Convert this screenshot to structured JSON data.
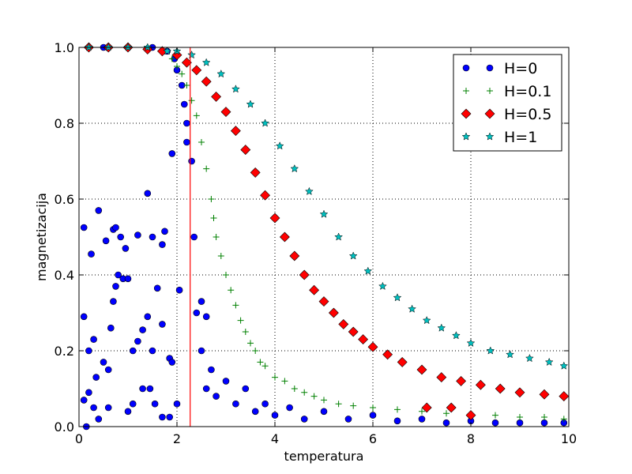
{
  "chart_data": {
    "type": "scatter",
    "xlabel": "temperatura",
    "ylabel": "magnetizacija",
    "xlim": [
      0,
      10
    ],
    "ylim": [
      0,
      1.0
    ],
    "xticks": [
      "0",
      "2",
      "4",
      "6",
      "8",
      "10"
    ],
    "yticks": [
      "0.0",
      "0.2",
      "0.4",
      "0.6",
      "0.8",
      "1.0"
    ],
    "grid": true,
    "legend_position": "top-right",
    "vertical_line": {
      "x": 2.27,
      "color": "#ff0000"
    },
    "series": [
      {
        "name": "H=0",
        "marker": "circle",
        "color": "#0000ff",
        "points": [
          [
            0.1,
            0.525
          ],
          [
            0.25,
            0.455
          ],
          [
            0.4,
            0.57
          ],
          [
            0.55,
            0.49
          ],
          [
            0.7,
            0.52
          ],
          [
            0.75,
            0.525
          ],
          [
            0.85,
            0.5
          ],
          [
            0.95,
            0.47
          ],
          [
            1.2,
            0.505
          ],
          [
            1.4,
            0.615
          ],
          [
            1.5,
            0.5
          ],
          [
            1.7,
            0.48
          ],
          [
            1.75,
            0.515
          ],
          [
            1.9,
            0.72
          ],
          [
            2.2,
            0.8
          ],
          [
            2.3,
            0.7
          ],
          [
            2.35,
            0.5
          ],
          [
            0.1,
            0.29
          ],
          [
            0.2,
            0.2
          ],
          [
            0.3,
            0.23
          ],
          [
            0.35,
            0.13
          ],
          [
            0.5,
            0.17
          ],
          [
            0.6,
            0.15
          ],
          [
            0.65,
            0.26
          ],
          [
            0.7,
            0.33
          ],
          [
            0.75,
            0.37
          ],
          [
            0.8,
            0.4
          ],
          [
            0.9,
            0.39
          ],
          [
            1.0,
            0.39
          ],
          [
            1.1,
            0.2
          ],
          [
            1.2,
            0.225
          ],
          [
            1.3,
            0.255
          ],
          [
            1.4,
            0.29
          ],
          [
            1.5,
            0.2
          ],
          [
            1.6,
            0.365
          ],
          [
            1.7,
            0.27
          ],
          [
            1.85,
            0.18
          ],
          [
            1.9,
            0.17
          ],
          [
            2.05,
            0.36
          ],
          [
            2.4,
            0.3
          ],
          [
            2.5,
            0.33
          ],
          [
            2.6,
            0.29
          ],
          [
            0.1,
            0.07
          ],
          [
            0.2,
            0.09
          ],
          [
            0.3,
            0.05
          ],
          [
            0.4,
            0.02
          ],
          [
            0.6,
            0.05
          ],
          [
            1.0,
            0.04
          ],
          [
            1.1,
            0.06
          ],
          [
            1.3,
            0.1
          ],
          [
            1.45,
            0.1
          ],
          [
            1.55,
            0.06
          ],
          [
            1.7,
            0.025
          ],
          [
            1.85,
            0.025
          ],
          [
            2.0,
            0.06
          ],
          [
            0.15,
            0.0
          ],
          [
            2.1,
            0.9
          ],
          [
            2.15,
            0.85
          ],
          [
            2.2,
            0.75
          ],
          [
            2.0,
            0.94
          ],
          [
            1.95,
            0.97
          ],
          [
            1.8,
            0.99
          ],
          [
            1.5,
            1.0
          ],
          [
            1.0,
            1.0
          ],
          [
            0.5,
            1.0
          ],
          [
            0.2,
            1.0
          ],
          [
            2.5,
            0.2
          ],
          [
            2.6,
            0.1
          ],
          [
            2.7,
            0.15
          ],
          [
            2.8,
            0.08
          ],
          [
            3.0,
            0.12
          ],
          [
            3.2,
            0.06
          ],
          [
            3.4,
            0.1
          ],
          [
            3.6,
            0.04
          ],
          [
            3.8,
            0.06
          ],
          [
            4.0,
            0.03
          ],
          [
            4.3,
            0.05
          ],
          [
            4.6,
            0.02
          ],
          [
            5.0,
            0.04
          ],
          [
            5.5,
            0.02
          ],
          [
            6.0,
            0.03
          ],
          [
            6.5,
            0.015
          ],
          [
            7.0,
            0.02
          ],
          [
            7.5,
            0.01
          ],
          [
            8.0,
            0.015
          ],
          [
            8.5,
            0.01
          ],
          [
            9.0,
            0.01
          ],
          [
            9.5,
            0.01
          ],
          [
            9.9,
            0.01
          ]
        ]
      },
      {
        "name": "H=0.1",
        "marker": "plus",
        "color": "#008000",
        "points": [
          [
            0.2,
            1.0
          ],
          [
            0.6,
            1.0
          ],
          [
            1.0,
            1.0
          ],
          [
            1.4,
            0.995
          ],
          [
            1.7,
            0.99
          ],
          [
            1.9,
            0.97
          ],
          [
            2.0,
            0.95
          ],
          [
            2.1,
            0.93
          ],
          [
            2.2,
            0.9
          ],
          [
            2.3,
            0.86
          ],
          [
            2.4,
            0.82
          ],
          [
            2.5,
            0.75
          ],
          [
            2.6,
            0.68
          ],
          [
            2.7,
            0.6
          ],
          [
            2.75,
            0.55
          ],
          [
            2.8,
            0.5
          ],
          [
            2.9,
            0.45
          ],
          [
            3.0,
            0.4
          ],
          [
            3.1,
            0.36
          ],
          [
            3.2,
            0.32
          ],
          [
            3.3,
            0.28
          ],
          [
            3.4,
            0.25
          ],
          [
            3.5,
            0.22
          ],
          [
            3.6,
            0.2
          ],
          [
            3.7,
            0.17
          ],
          [
            3.8,
            0.16
          ],
          [
            4.0,
            0.13
          ],
          [
            4.2,
            0.12
          ],
          [
            4.4,
            0.1
          ],
          [
            4.6,
            0.09
          ],
          [
            4.8,
            0.08
          ],
          [
            5.0,
            0.07
          ],
          [
            5.3,
            0.06
          ],
          [
            5.6,
            0.055
          ],
          [
            6.0,
            0.05
          ],
          [
            6.5,
            0.045
          ],
          [
            7.0,
            0.04
          ],
          [
            7.5,
            0.035
          ],
          [
            8.0,
            0.03
          ],
          [
            8.5,
            0.03
          ],
          [
            9.0,
            0.025
          ],
          [
            9.5,
            0.025
          ],
          [
            9.9,
            0.02
          ]
        ]
      },
      {
        "name": "H=0.5",
        "marker": "diamond",
        "color": "#ff0000",
        "points": [
          [
            0.2,
            1.0
          ],
          [
            0.6,
            1.0
          ],
          [
            1.0,
            1.0
          ],
          [
            1.4,
            0.995
          ],
          [
            1.7,
            0.99
          ],
          [
            2.0,
            0.98
          ],
          [
            2.2,
            0.96
          ],
          [
            2.4,
            0.94
          ],
          [
            2.6,
            0.91
          ],
          [
            2.8,
            0.87
          ],
          [
            3.0,
            0.83
          ],
          [
            3.2,
            0.78
          ],
          [
            3.4,
            0.73
          ],
          [
            3.6,
            0.67
          ],
          [
            3.8,
            0.61
          ],
          [
            4.0,
            0.55
          ],
          [
            4.2,
            0.5
          ],
          [
            4.4,
            0.45
          ],
          [
            4.6,
            0.4
          ],
          [
            4.8,
            0.36
          ],
          [
            5.0,
            0.33
          ],
          [
            5.2,
            0.3
          ],
          [
            5.4,
            0.27
          ],
          [
            5.6,
            0.25
          ],
          [
            5.8,
            0.23
          ],
          [
            6.0,
            0.21
          ],
          [
            6.3,
            0.19
          ],
          [
            6.6,
            0.17
          ],
          [
            7.0,
            0.15
          ],
          [
            7.4,
            0.13
          ],
          [
            7.8,
            0.12
          ],
          [
            8.2,
            0.11
          ],
          [
            8.6,
            0.1
          ],
          [
            9.0,
            0.09
          ],
          [
            9.5,
            0.085
          ],
          [
            9.9,
            0.08
          ],
          [
            7.1,
            0.05
          ],
          [
            7.6,
            0.05
          ],
          [
            8.0,
            0.03
          ]
        ]
      },
      {
        "name": "H=1",
        "marker": "star",
        "color": "#00bfbf",
        "points": [
          [
            0.2,
            1.0
          ],
          [
            0.6,
            1.0
          ],
          [
            1.0,
            1.0
          ],
          [
            1.4,
            1.0
          ],
          [
            1.8,
            0.99
          ],
          [
            2.0,
            0.99
          ],
          [
            2.3,
            0.98
          ],
          [
            2.6,
            0.96
          ],
          [
            2.9,
            0.93
          ],
          [
            3.2,
            0.89
          ],
          [
            3.5,
            0.85
          ],
          [
            3.8,
            0.8
          ],
          [
            4.1,
            0.74
          ],
          [
            4.4,
            0.68
          ],
          [
            4.7,
            0.62
          ],
          [
            5.0,
            0.56
          ],
          [
            5.3,
            0.5
          ],
          [
            5.6,
            0.45
          ],
          [
            5.9,
            0.41
          ],
          [
            6.2,
            0.37
          ],
          [
            6.5,
            0.34
          ],
          [
            6.8,
            0.31
          ],
          [
            7.1,
            0.28
          ],
          [
            7.4,
            0.26
          ],
          [
            7.7,
            0.24
          ],
          [
            8.0,
            0.22
          ],
          [
            8.4,
            0.2
          ],
          [
            8.8,
            0.19
          ],
          [
            9.2,
            0.18
          ],
          [
            9.6,
            0.17
          ],
          [
            9.9,
            0.16
          ]
        ]
      }
    ]
  }
}
